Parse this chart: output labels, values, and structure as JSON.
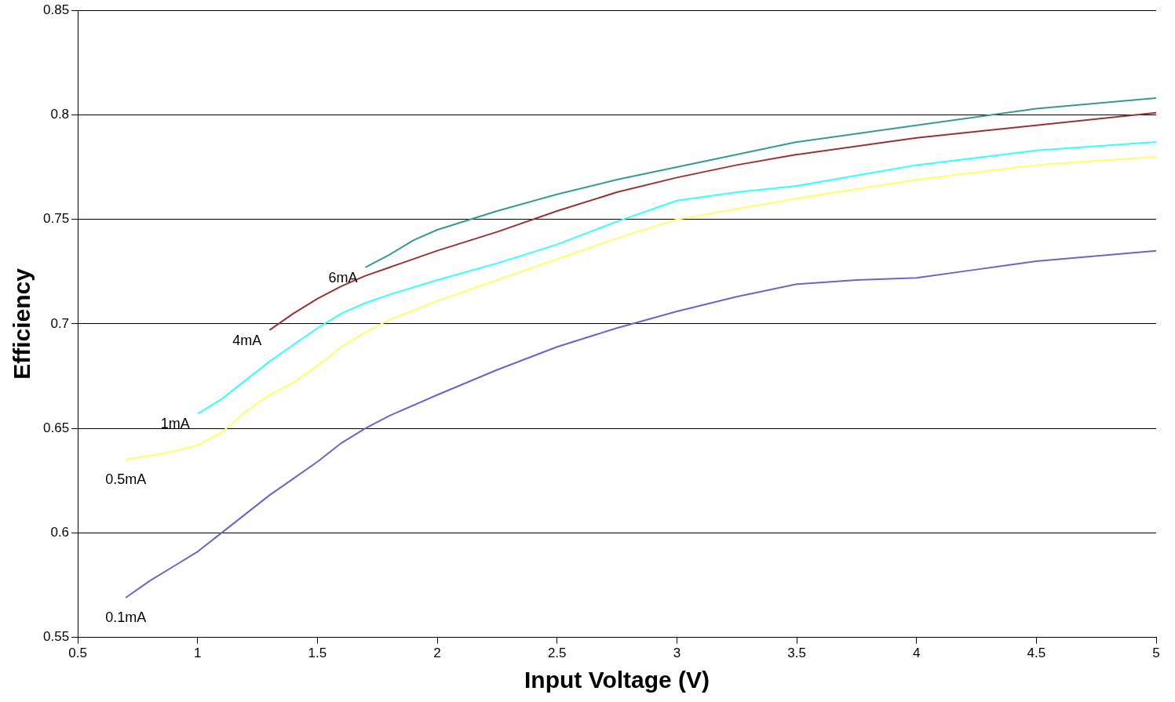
{
  "chart_data": {
    "type": "line",
    "xlabel": "Input Voltage (V)",
    "ylabel": "Efficiency",
    "xlim": [
      0.5,
      5
    ],
    "xticks": [
      0.5,
      1,
      1.5,
      2,
      2.5,
      3,
      3.5,
      4,
      4.5,
      5
    ],
    "ylim": [
      0.55,
      0.85
    ],
    "yticks": [
      0.55,
      0.6,
      0.65,
      0.7,
      0.75,
      0.8,
      0.85
    ],
    "grid": "y",
    "legend": false,
    "marker": "none",
    "line_style": "solid",
    "series": [
      {
        "name": "6mA",
        "color": "#339999",
        "x": [
          1.7,
          1.8,
          1.9,
          2.0,
          2.25,
          2.5,
          2.75,
          3.0,
          3.25,
          3.5,
          4.0,
          4.5,
          5.0
        ],
        "values": [
          0.727,
          0.733,
          0.74,
          0.745,
          0.754,
          0.762,
          0.769,
          0.775,
          0.781,
          0.787,
          0.795,
          0.803,
          0.808
        ]
      },
      {
        "name": "4mA",
        "color": "#993333",
        "x": [
          1.3,
          1.4,
          1.5,
          1.6,
          1.7,
          1.8,
          2.0,
          2.25,
          2.5,
          2.75,
          3.0,
          3.25,
          3.5,
          4.0,
          4.5,
          5.0
        ],
        "values": [
          0.697,
          0.705,
          0.712,
          0.718,
          0.723,
          0.727,
          0.735,
          0.744,
          0.754,
          0.763,
          0.77,
          0.776,
          0.781,
          0.789,
          0.795,
          0.801
        ]
      },
      {
        "name": "1mA",
        "color": "#33ffff",
        "x": [
          1.0,
          1.1,
          1.2,
          1.3,
          1.4,
          1.5,
          1.6,
          1.7,
          1.8,
          2.0,
          2.25,
          2.5,
          2.75,
          3.0,
          3.25,
          3.5,
          4.0,
          4.5,
          5.0
        ],
        "values": [
          0.657,
          0.664,
          0.673,
          0.682,
          0.69,
          0.698,
          0.705,
          0.71,
          0.714,
          0.721,
          0.729,
          0.738,
          0.749,
          0.759,
          0.763,
          0.766,
          0.776,
          0.783,
          0.787
        ]
      },
      {
        "name": "0.5mA",
        "color": "#ffff66",
        "x": [
          0.7,
          0.8,
          0.9,
          1.0,
          1.1,
          1.2,
          1.3,
          1.4,
          1.5,
          1.6,
          1.7,
          1.8,
          2.0,
          2.25,
          2.5,
          2.75,
          3.0,
          3.25,
          3.5,
          4.0,
          4.5,
          5.0
        ],
        "values": [
          0.635,
          0.637,
          0.639,
          0.642,
          0.648,
          0.658,
          0.666,
          0.672,
          0.68,
          0.689,
          0.696,
          0.702,
          0.711,
          0.721,
          0.731,
          0.741,
          0.75,
          0.755,
          0.76,
          0.769,
          0.776,
          0.78
        ]
      },
      {
        "name": "0.1mA",
        "color": "#6666cc",
        "x": [
          0.7,
          0.8,
          0.9,
          1.0,
          1.1,
          1.2,
          1.3,
          1.4,
          1.5,
          1.6,
          1.7,
          1.8,
          2.0,
          2.25,
          2.5,
          2.75,
          3.0,
          3.25,
          3.5,
          3.75,
          4.0,
          4.25,
          4.5,
          5.0
        ],
        "values": [
          0.569,
          0.577,
          0.584,
          0.591,
          0.6,
          0.609,
          0.618,
          0.626,
          0.634,
          0.643,
          0.65,
          0.656,
          0.666,
          0.678,
          0.689,
          0.698,
          0.706,
          0.713,
          0.719,
          0.721,
          0.722,
          0.726,
          0.73,
          0.735
        ]
      }
    ]
  }
}
